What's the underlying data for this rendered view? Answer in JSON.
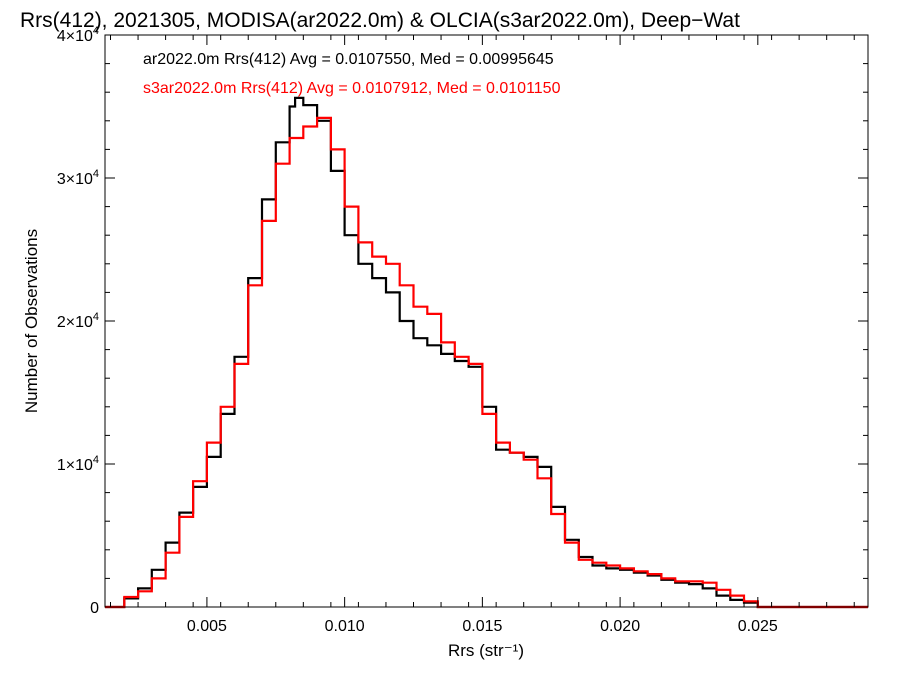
{
  "chart_data": {
    "type": "line",
    "step": true,
    "title": "Rrs(412), 2021305, MODISA(ar2022.0m) & OLCIA(s3ar2022.0m), Deep−Wat",
    "xlabel": "Rrs (str⁻¹)",
    "ylabel": "Number of Observations",
    "xlim": [
      0.0013,
      0.029
    ],
    "ylim": [
      0,
      40000
    ],
    "xticks": [
      0.005,
      0.01,
      0.015,
      0.02,
      0.025
    ],
    "xtick_labels": [
      "0.005",
      "0.010",
      "0.015",
      "0.020",
      "0.025"
    ],
    "yticks": [
      0,
      10000,
      20000,
      30000,
      40000
    ],
    "ytick_labels": [
      {
        "mantissa": "0",
        "exponent": ""
      },
      {
        "mantissa": "1×10",
        "exponent": "4"
      },
      {
        "mantissa": "2×10",
        "exponent": "4"
      },
      {
        "mantissa": "3×10",
        "exponent": "4"
      },
      {
        "mantissa": "4×10",
        "exponent": "4"
      }
    ],
    "grid": false,
    "legend": "top-left",
    "annotations": [
      "ar2022.0m Rrs(412) Avg = 0.0107550, Med = 0.00995645",
      "s3ar2022.0m Rrs(412) Avg = 0.0107912, Med = 0.0101150"
    ],
    "series": [
      {
        "name": "ar2022.0m",
        "color": "#000000",
        "points": [
          [
            0.0013,
            0
          ],
          [
            0.002,
            600
          ],
          [
            0.0025,
            1300
          ],
          [
            0.003,
            2600
          ],
          [
            0.0035,
            4500
          ],
          [
            0.004,
            6600
          ],
          [
            0.0045,
            8400
          ],
          [
            0.005,
            10500
          ],
          [
            0.0055,
            13500
          ],
          [
            0.006,
            17500
          ],
          [
            0.0065,
            23000
          ],
          [
            0.007,
            28500
          ],
          [
            0.0075,
            32500
          ],
          [
            0.008,
            35000
          ],
          [
            0.0082,
            35600
          ],
          [
            0.0085,
            35100
          ],
          [
            0.009,
            34000
          ],
          [
            0.0095,
            30500
          ],
          [
            0.01,
            26000
          ],
          [
            0.0105,
            24000
          ],
          [
            0.011,
            23000
          ],
          [
            0.0115,
            22000
          ],
          [
            0.012,
            20000
          ],
          [
            0.0125,
            18800
          ],
          [
            0.013,
            18300
          ],
          [
            0.0135,
            17700
          ],
          [
            0.014,
            17200
          ],
          [
            0.0145,
            16800
          ],
          [
            0.015,
            14000
          ],
          [
            0.0155,
            11000
          ],
          [
            0.016,
            10800
          ],
          [
            0.0165,
            10500
          ],
          [
            0.017,
            9800
          ],
          [
            0.0175,
            7000
          ],
          [
            0.018,
            4700
          ],
          [
            0.0185,
            3500
          ],
          [
            0.019,
            2900
          ],
          [
            0.0195,
            2700
          ],
          [
            0.02,
            2600
          ],
          [
            0.0205,
            2400
          ],
          [
            0.021,
            2200
          ],
          [
            0.0215,
            1900
          ],
          [
            0.022,
            1700
          ],
          [
            0.0225,
            1600
          ],
          [
            0.023,
            1300
          ],
          [
            0.0235,
            800
          ],
          [
            0.024,
            500
          ],
          [
            0.0245,
            300
          ],
          [
            0.025,
            0
          ],
          [
            0.029,
            0
          ]
        ]
      },
      {
        "name": "s3ar2022.0m",
        "color": "#ff0000",
        "points": [
          [
            0.0013,
            0
          ],
          [
            0.002,
            700
          ],
          [
            0.0025,
            1100
          ],
          [
            0.003,
            2000
          ],
          [
            0.0035,
            3800
          ],
          [
            0.004,
            6300
          ],
          [
            0.0045,
            8800
          ],
          [
            0.005,
            11500
          ],
          [
            0.0055,
            14000
          ],
          [
            0.006,
            17000
          ],
          [
            0.0065,
            22500
          ],
          [
            0.007,
            27000
          ],
          [
            0.0075,
            31000
          ],
          [
            0.008,
            32800
          ],
          [
            0.0085,
            33600
          ],
          [
            0.009,
            34200
          ],
          [
            0.0095,
            32000
          ],
          [
            0.01,
            28000
          ],
          [
            0.0105,
            25500
          ],
          [
            0.011,
            24500
          ],
          [
            0.0115,
            24000
          ],
          [
            0.012,
            22500
          ],
          [
            0.0125,
            21000
          ],
          [
            0.013,
            20500
          ],
          [
            0.0135,
            18500
          ],
          [
            0.014,
            17500
          ],
          [
            0.0145,
            17000
          ],
          [
            0.015,
            13500
          ],
          [
            0.0155,
            11500
          ],
          [
            0.016,
            10800
          ],
          [
            0.0165,
            10300
          ],
          [
            0.017,
            9000
          ],
          [
            0.0175,
            6500
          ],
          [
            0.018,
            4500
          ],
          [
            0.0185,
            3300
          ],
          [
            0.019,
            3100
          ],
          [
            0.0195,
            2900
          ],
          [
            0.02,
            2700
          ],
          [
            0.0205,
            2500
          ],
          [
            0.021,
            2300
          ],
          [
            0.0215,
            2000
          ],
          [
            0.022,
            1800
          ],
          [
            0.0225,
            1800
          ],
          [
            0.023,
            1700
          ],
          [
            0.0235,
            1200
          ],
          [
            0.024,
            800
          ],
          [
            0.0245,
            400
          ],
          [
            0.025,
            0
          ],
          [
            0.029,
            0
          ]
        ]
      }
    ]
  }
}
